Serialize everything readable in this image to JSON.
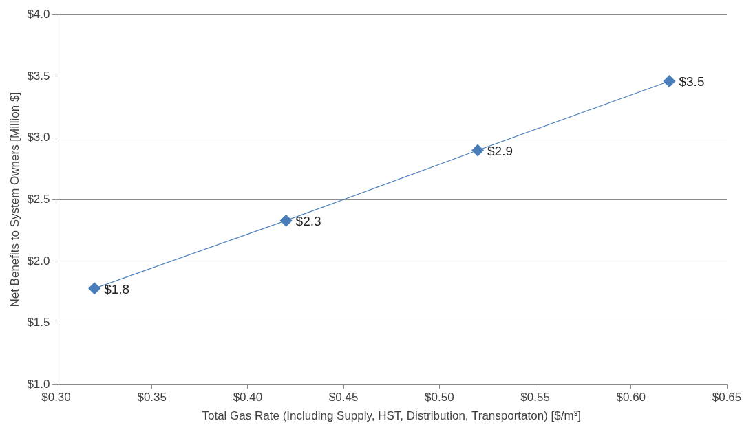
{
  "chart_data": {
    "type": "line",
    "xlabel": "Total Gas Rate (Including Supply, HST, Distribution, Transportaton) [$/m³]",
    "ylabel": "Net Benefits to System Owners [Million $]",
    "x": [
      0.32,
      0.42,
      0.52,
      0.62
    ],
    "series": [
      {
        "color": "#4a7ebb",
        "values": [
          1.78,
          2.33,
          2.9,
          3.46
        ],
        "value_labels": [
          "$1.8",
          "$2.3",
          "$2.9",
          "$3.5"
        ]
      }
    ],
    "xlim": [
      0.3,
      0.65
    ],
    "ylim": [
      1,
      4
    ],
    "xticks": [
      {
        "value": 0.3,
        "label": "$0.30"
      },
      {
        "value": 0.35,
        "label": "$0.35"
      },
      {
        "value": 0.4,
        "label": "$0.40"
      },
      {
        "value": 0.45,
        "label": "$0.45"
      },
      {
        "value": 0.5,
        "label": "$0.50"
      },
      {
        "value": 0.55,
        "label": "$0.55"
      },
      {
        "value": 0.6,
        "label": "$0.60"
      },
      {
        "value": 0.65,
        "label": "$0.65"
      }
    ],
    "yticks": [
      {
        "value": 1,
        "label": "$1.0"
      },
      {
        "value": 1.5,
        "label": "$1.5"
      },
      {
        "value": 2,
        "label": "$2.0"
      },
      {
        "value": 2.5,
        "label": "$2.5"
      },
      {
        "value": 3,
        "label": "$3.0"
      },
      {
        "value": 3.5,
        "label": "$3.5"
      },
      {
        "value": 4,
        "label": "$4.0"
      }
    ],
    "grid": "y",
    "marker": "diamond",
    "line_style": "solid",
    "legend": false
  }
}
